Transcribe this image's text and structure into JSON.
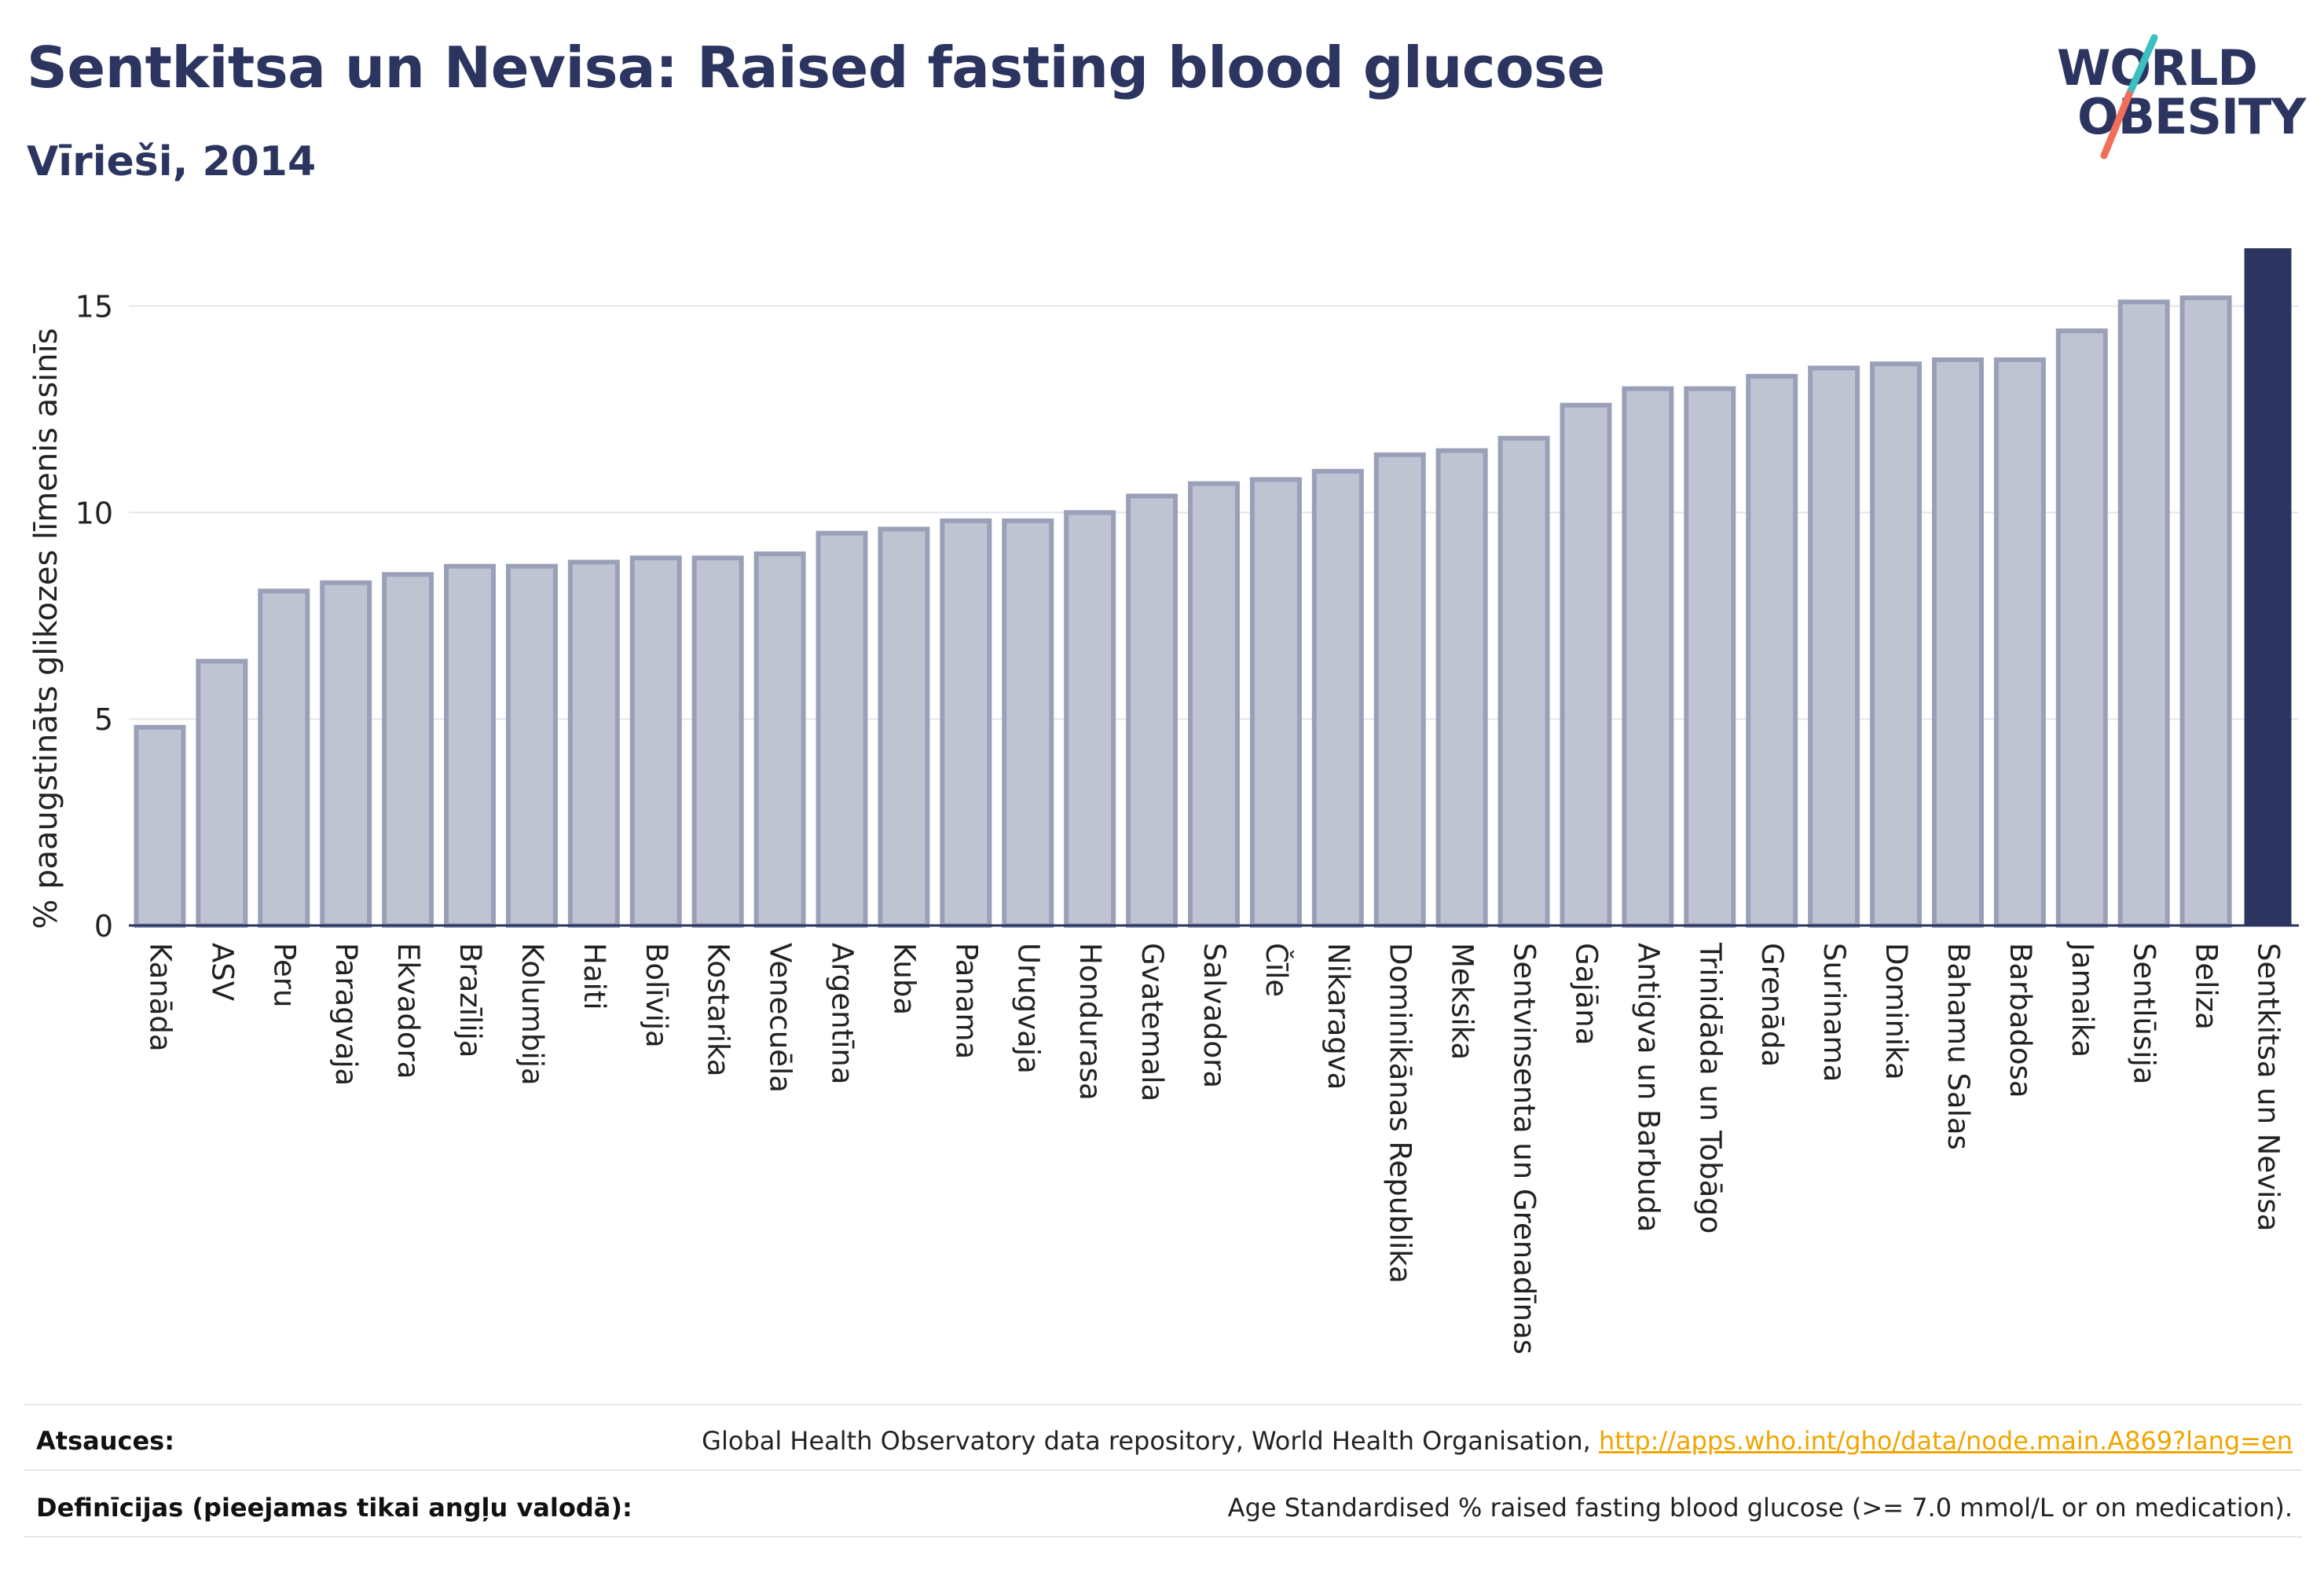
{
  "header": {
    "title": "Sentkitsa un Nevisa: Raised fasting blood glucose",
    "subtitle": "Vīrieši, 2014"
  },
  "logo": {
    "line1": "WORLD",
    "line2": "OBESITY",
    "colors": {
      "text": "#2b3560",
      "slash_teal": "#3cbfbf",
      "slash_coral": "#f06e5a"
    }
  },
  "colors": {
    "bar_fill": "#c0c4d2",
    "bar_stroke": "#9aa0b8",
    "highlight_fill": "#2b3560",
    "grid": "#e3e5ec",
    "axis": "#2b3560"
  },
  "chart_data": {
    "type": "bar",
    "ylabel": "% paaugstināts glikozes līmenis asinīs",
    "xlabel": "",
    "ylim": [
      0,
      16.4
    ],
    "yticks": [
      0,
      5,
      10,
      15
    ],
    "grid": true,
    "highlight": "Sentkitsa un Nevisa",
    "categories": [
      "Kanāda",
      "ASV",
      "Peru",
      "Paragvaja",
      "Ekvadora",
      "Brazīlija",
      "Kolumbija",
      "Haiti",
      "Bolīvija",
      "Kostarika",
      "Venecuēla",
      "Argentīna",
      "Kuba",
      "Panama",
      "Urugvaja",
      "Hondurasa",
      "Gvatemala",
      "Salvadora",
      "Čīle",
      "Nikaragva",
      "Dominikānas Republika",
      "Meksika",
      "Sentvinsenta un Grenadīnas",
      "Gajāna",
      "Antigva un Barbuda",
      "Trinidāda un Tobāgo",
      "Grenāda",
      "Surinama",
      "Dominika",
      "Bahamu Salas",
      "Barbadosa",
      "Jamaika",
      "Sentlūsija",
      "Beliza",
      "Sentkitsa un Nevisa"
    ],
    "values": [
      4.8,
      6.4,
      8.1,
      8.3,
      8.5,
      8.7,
      8.7,
      8.8,
      8.9,
      8.9,
      9.0,
      9.5,
      9.6,
      9.8,
      9.8,
      10.0,
      10.4,
      10.7,
      10.8,
      11.0,
      11.4,
      11.5,
      11.8,
      12.6,
      13.0,
      13.0,
      13.3,
      13.5,
      13.6,
      13.7,
      13.7,
      14.4,
      15.1,
      15.2,
      16.4
    ]
  },
  "footer": {
    "sources_label": "Atsauces:",
    "sources_text": "Global Health Observatory data repository, World Health Organisation, ",
    "sources_link": "http://apps.who.int/gho/data/node.main.A869?lang=en",
    "definitions_label": "Definīcijas (pieejamas tikai angļu valodā):",
    "definitions_text": "Age Standardised % raised fasting blood glucose (>= 7.0 mmol/L or on medication)."
  }
}
